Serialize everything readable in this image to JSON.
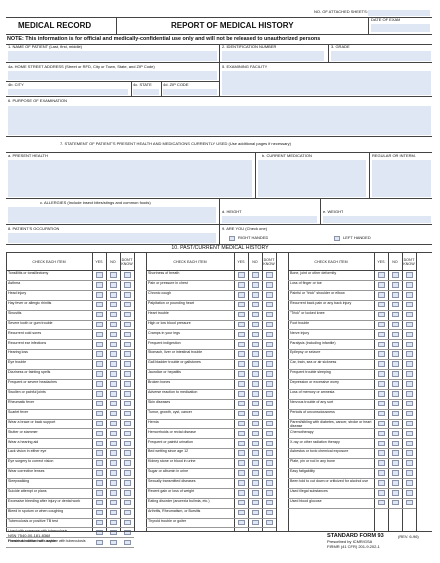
{
  "header": {
    "no_attached_label": "NO. OF ATTACHED SHEETS:",
    "date_exam_label": "DATE OF EXAM",
    "medical_record": "MEDICAL RECORD",
    "report_title": "REPORT OF MEDICAL HISTORY",
    "note": "NOTE:  This information is for official and medically-confidential use only and will not be released to unauthorized persons"
  },
  "fields": {
    "name": "1. NAME OF PATIENT (Last, first, middle)",
    "identification": "2. IDENTIFICATION NUMBER",
    "grade": "3. GRADE",
    "home_street": "4a. HOME STREET ADDRESS (Street or RFD, City or Town, State, and ZIP Code)",
    "exam_facility": "5. EXAMINING FACILITY",
    "city": "4b. CITY",
    "state": "4c. STATE",
    "zip": "4d. ZIP CODE",
    "purpose": "6. PURPOSE OF EXAMINATION",
    "statement": "7. STATEMENT OF PATIENT'S PRESENT HEALTH AND MEDICATIONS CURRENTLY USED (Use additional pages if necessary)",
    "present_health": "a. PRESENT HEALTH",
    "current_medication": "b. CURRENT MEDICATION",
    "regular_or_interm": "REGULAR OR INTERM.",
    "allergies": "c. ALLERGIES (Include insect bites/stings and common foods)",
    "height": "d. HEIGHT",
    "weight": "e. WEIGHT",
    "occupation": "8. PATIENT'S OCCUPATION",
    "handed": "9. ARE YOU (Check one)",
    "right_handed": "RIGHT HANDED",
    "left_handed": "LEFT HANDED"
  },
  "history": {
    "title": "10. PAST/CURRENT MEDICAL HISTORY",
    "col_check": "CHECK EACH ITEM",
    "col_yes": "YES",
    "col_no": "NO",
    "col_dont": "DON'T KNOW",
    "columns": [
      [
        "Tonsillitis or tonsillectomy",
        "Asthma",
        "Head injury",
        "Hay fever or allergic rhinitis",
        "Sinusitis",
        "Severe tooth or gum trouble",
        "Recurrent cold sores",
        "Recurrent ear infections",
        "Hearing loss",
        "Eye trouble",
        "Dizziness or fainting spells",
        "Frequent or severe headaches",
        "Swollen or painful joints",
        "Rheumatic fever",
        "Scarlet fever",
        "Wear a brace or back support",
        "Stutter or stammer",
        "Wear a hearing aid",
        "Lack vision in either eye",
        "Eye surgery to correct vision",
        "Wear corrective lenses",
        "Sleepwalking",
        "Suicide attempt or plans",
        "Excessive bleeding after injury or dental work",
        "Bleed in sputum or when coughing",
        "Tuberculosis or positive TB test",
        "Lived with someone with tuberculosis",
        "Household contact with anyone with tuberculosis"
      ],
      [
        "Shortness of breath",
        "Pain or pressure in chest",
        "Chronic cough",
        "Palpitation or pounding heart",
        "Heart trouble",
        "High or low blood pressure",
        "Cramps in your legs",
        "Frequent indigestion",
        "Stomach, liver or intestinal trouble",
        "Gall bladder trouble or gallstones",
        "Jaundice or hepatitis",
        "Broken bones",
        "Adverse reaction to medication",
        "Skin diseases",
        "Tumor, growth, cyst, cancer",
        "Hernia",
        "Hemorrhoids or rectal disease",
        "Frequent or painful urination",
        "Bed wetting since age 12",
        "Kidney stone or blood in urine",
        "Sugar or albumin in urine",
        "Sexually transmitted diseases",
        "Recent gain or loss of weight",
        "Eating disorder (anorexia bulimia, etc.)",
        "Arthritis, Rheumatism, or Bursitis",
        "Thyroid trouble or goiter"
      ],
      [
        "Bone, joint or other deformity",
        "Loss of finger or toe",
        "Painful or \"trick\" shoulder or elbow",
        "Recurrent back pain or any back injury",
        "\"Trick\" or locked knee",
        "Foot trouble",
        "Nerve injury",
        "Paralysis (including infantile)",
        "Epilepsy or seizure",
        "Car, train, sea or air sickness",
        "Frequent trouble sleeping",
        "Depression or excessive worry",
        "Loss of memory or amnesia",
        "Nervous trouble of any sort",
        "Periods of unconsciousness",
        "Parent/sibling with diabetes, cancer, stroke or heart disease",
        "Chemotherapy",
        "X-ray or other radiation therapy",
        "Asbestos or toxic chemical exposure",
        "Plate, pin or rod in any bone",
        "Easy fatigability",
        "Been told to cut down or criticized for alcohol use",
        "Used illegal substances",
        "Used blood glucose"
      ]
    ]
  },
  "footer": {
    "nsn": "NSN 7540-00-181-8368",
    "prev_edition": "Previous edition not usable",
    "form": "STANDARD FORM 93",
    "rev": "(REV. 6-96)",
    "prescribed": "Prescribed by ICMR/GSA",
    "firmr": "FIRMR (41 CFR) 201-9.202-1"
  }
}
